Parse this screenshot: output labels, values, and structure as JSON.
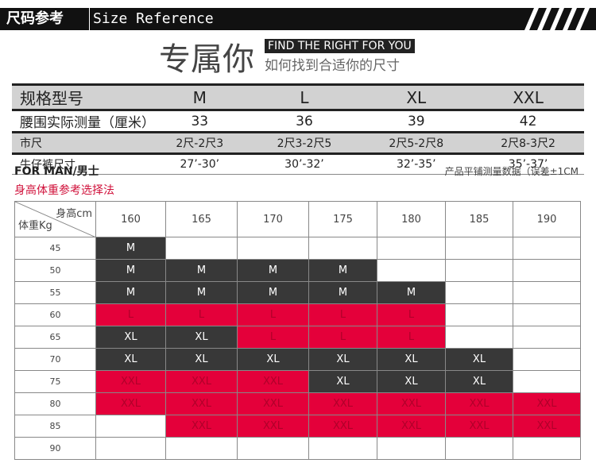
{
  "header": {
    "title_cn": "尺码参考",
    "title_en": "Size Reference"
  },
  "title": {
    "main": "专属你",
    "tagline": "FIND THE RIGHT FOR YOU",
    "subtitle": "如何找到合适你的尺寸"
  },
  "size_table": {
    "rows": [
      [
        "规格型号",
        "M",
        "L",
        "XL",
        "XXL"
      ],
      [
        "腰围实际测量（厘米）",
        33,
        36,
        39,
        42
      ],
      [
        "市尺",
        "2尺-2尺3",
        "2尺3-2尺5",
        "2尺5-2尺8",
        "2尺8-3尺2"
      ],
      [
        "牛仔裤尺寸",
        "27’-30’",
        "30’-32’",
        "32’-35’",
        "35’-37’"
      ]
    ]
  },
  "section": {
    "label": "FOR MAN/男士",
    "note": "产品平铺测量数据（误差±1CM",
    "subtitle": "身高体重参考选择法"
  },
  "grid": {
    "corner_height": "身高cm",
    "corner_weight": "体重Kg",
    "heights": [
      160,
      165,
      170,
      175,
      180,
      185,
      190
    ],
    "cell_colors": {
      "M": "#383838",
      "XL": "#383838",
      "L": "#e4003a",
      "XXL": "#e4003a"
    },
    "rows": [
      {
        "weight": 45,
        "cells": [
          "M",
          null,
          null,
          null,
          null,
          null,
          null
        ]
      },
      {
        "weight": 50,
        "cells": [
          "M",
          "M",
          "M",
          "M",
          null,
          null,
          null
        ]
      },
      {
        "weight": 55,
        "cells": [
          "M",
          "M",
          "M",
          "M",
          "M",
          null,
          null
        ]
      },
      {
        "weight": 60,
        "cells": [
          "L",
          "L",
          "L",
          "L",
          "L",
          null,
          null
        ]
      },
      {
        "weight": 65,
        "cells": [
          "XL",
          "XL",
          "L",
          "L",
          "L",
          null,
          null
        ]
      },
      {
        "weight": 70,
        "cells": [
          "XL",
          "XL",
          "XL",
          "XL",
          "XL",
          "XL",
          null
        ]
      },
      {
        "weight": 75,
        "cells": [
          "XXL",
          "XXL",
          "XXL",
          "XL",
          "XL",
          "XL",
          null
        ]
      },
      {
        "weight": 80,
        "cells": [
          "XXL",
          "XXL",
          "XXL",
          "XXL",
          "XXL",
          "XXL",
          "XXL"
        ]
      },
      {
        "weight": 85,
        "cells": [
          null,
          "XXL",
          "XXL",
          "XXL",
          "XXL",
          "XXL",
          "XXL"
        ]
      },
      {
        "weight": 90,
        "cells": [
          null,
          null,
          null,
          null,
          null,
          null,
          null
        ]
      }
    ]
  }
}
